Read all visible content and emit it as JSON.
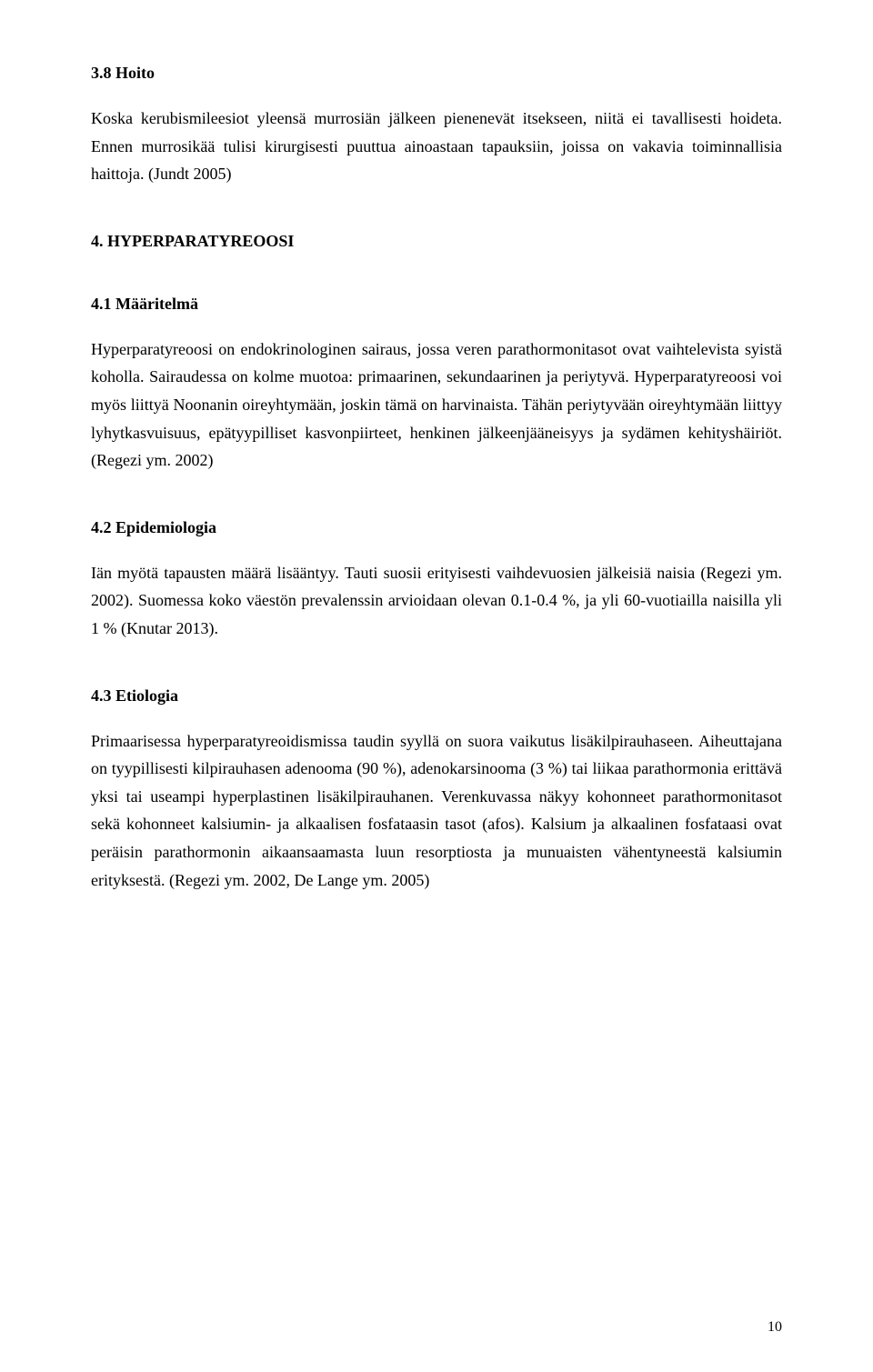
{
  "page": {
    "number": "10"
  },
  "sections": {
    "s1": {
      "heading": "3.8 Hoito",
      "p1": "Koska kerubismileesiot yleensä murrosiän jälkeen pienenevät itsekseen, niitä ei tavallisesti hoideta. Ennen murrosikää tulisi kirurgisesti puuttua ainoastaan tapauksiin, joissa on vakavia toiminnallisia haittoja. (Jundt 2005)"
    },
    "s2": {
      "heading": "4. HYPERPARATYREOOSI",
      "sub1": {
        "heading": "4.1 Määritelmä",
        "p1": "Hyperparatyreoosi on endokrinologinen sairaus, jossa veren parathormonitasot ovat vaihtelevista syistä koholla. Sairaudessa on kolme muotoa: primaarinen, sekundaarinen ja periytyvä. Hyperparatyreoosi voi myös liittyä Noonanin oireyhtymään, joskin tämä on harvinaista. Tähän periytyvään oireyhtymään liittyy lyhytkasvuisuus, epätyypilliset kasvonpiirteet, henkinen jälkeenjääneisyys ja sydämen kehityshäiriöt. (Regezi ym. 2002)"
      },
      "sub2": {
        "heading": "4.2 Epidemiologia",
        "p1": "Iän myötä tapausten määrä lisääntyy. Tauti suosii erityisesti vaihdevuosien jälkeisiä naisia (Regezi ym. 2002). Suomessa koko väestön prevalenssin arvioidaan olevan 0.1-0.4 %, ja yli 60-vuotiailla naisilla yli 1 % (Knutar 2013)."
      },
      "sub3": {
        "heading": "4.3 Etiologia",
        "p1": "Primaarisessa hyperparatyreoidismissa taudin syyllä on suora vaikutus lisäkilpirauhaseen. Aiheuttajana on tyypillisesti kilpirauhasen adenooma (90 %), adenokarsinooma (3 %) tai liikaa parathormonia erittävä yksi tai useampi hyperplastinen lisäkilpirauhanen. Verenkuvassa näkyy kohonneet parathormonitasot sekä kohonneet kalsiumin- ja alkaalisen fosfataasin tasot (afos). Kalsium ja alkaalinen fosfataasi ovat peräisin parathormonin aikaansaamasta luun resorptiosta ja munuaisten vähentyneestä kalsiumin erityksestä. (Regezi ym. 2002, De Lange ym. 2005)"
      }
    }
  }
}
